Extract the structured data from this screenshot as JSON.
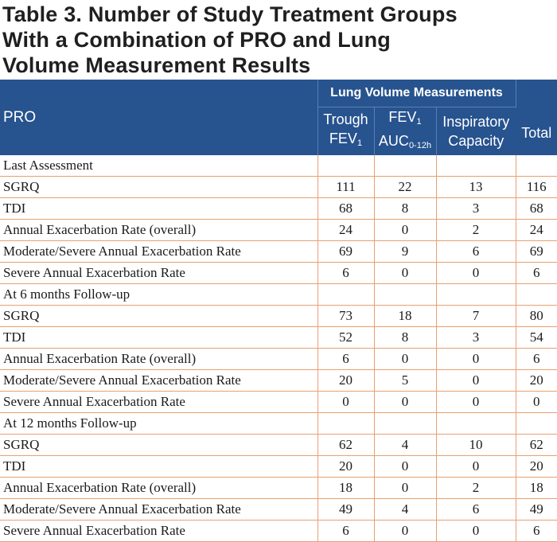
{
  "title": {
    "line1": "Table 3. Number of Study Treatment Groups",
    "line2": "With a Combination of PRO and Lung",
    "line3": "Volume Measurement Results"
  },
  "header": {
    "pro": "PRO",
    "group": "Lung Volume Measurements",
    "trough_line1": "Trough",
    "trough_line2": "FEV",
    "trough_sub": "1",
    "fev_line1": "FEV",
    "fev_sub1": "1",
    "fev_line2": "AUC",
    "fev_sub2": "0-12h",
    "insp_line1": "Inspiratory",
    "insp_line2": "Capacity",
    "total": "Total"
  },
  "rows": [
    {
      "label": "Last Assessment",
      "section": true,
      "values": [
        "",
        "",
        "",
        ""
      ]
    },
    {
      "label": "SGRQ",
      "section": false,
      "values": [
        "111",
        "22",
        "13",
        "116"
      ]
    },
    {
      "label": "TDI",
      "section": false,
      "values": [
        "68",
        "8",
        "3",
        "68"
      ]
    },
    {
      "label": "Annual Exacerbation Rate (overall)",
      "section": false,
      "values": [
        "24",
        "0",
        "2",
        "24"
      ]
    },
    {
      "label": "Moderate/Severe Annual Exacerbation Rate",
      "section": false,
      "values": [
        "69",
        "9",
        "6",
        "69"
      ]
    },
    {
      "label": "Severe Annual Exacerbation Rate",
      "section": false,
      "values": [
        "6",
        "0",
        "0",
        "6"
      ]
    },
    {
      "label": "At 6 months Follow-up",
      "section": true,
      "values": [
        "",
        "",
        "",
        ""
      ]
    },
    {
      "label": "SGRQ",
      "section": false,
      "values": [
        "73",
        "18",
        "7",
        "80"
      ]
    },
    {
      "label": "TDI",
      "section": false,
      "values": [
        "52",
        "8",
        "3",
        "54"
      ]
    },
    {
      "label": "Annual Exacerbation Rate (overall)",
      "section": false,
      "values": [
        "6",
        "0",
        "0",
        "6"
      ]
    },
    {
      "label": "Moderate/Severe Annual Exacerbation Rate",
      "section": false,
      "values": [
        "20",
        "5",
        "0",
        "20"
      ]
    },
    {
      "label": "Severe Annual Exacerbation Rate",
      "section": false,
      "values": [
        "0",
        "0",
        "0",
        "0"
      ]
    },
    {
      "label": "At 12 months Follow-up",
      "section": true,
      "values": [
        "",
        "",
        "",
        ""
      ]
    },
    {
      "label": "SGRQ",
      "section": false,
      "values": [
        "62",
        "4",
        "10",
        "62"
      ]
    },
    {
      "label": "TDI",
      "section": false,
      "values": [
        "20",
        "0",
        "0",
        "20"
      ]
    },
    {
      "label": "Annual Exacerbation Rate (overall)",
      "section": false,
      "values": [
        "18",
        "0",
        "2",
        "18"
      ]
    },
    {
      "label": "Moderate/Severe Annual Exacerbation Rate",
      "section": false,
      "values": [
        "49",
        "4",
        "6",
        "49"
      ]
    },
    {
      "label": "Severe Annual Exacerbation Rate",
      "section": false,
      "values": [
        "6",
        "0",
        "0",
        "6"
      ]
    }
  ],
  "colors": {
    "header_bg": "#27538f",
    "row_border": "#e8a070"
  }
}
